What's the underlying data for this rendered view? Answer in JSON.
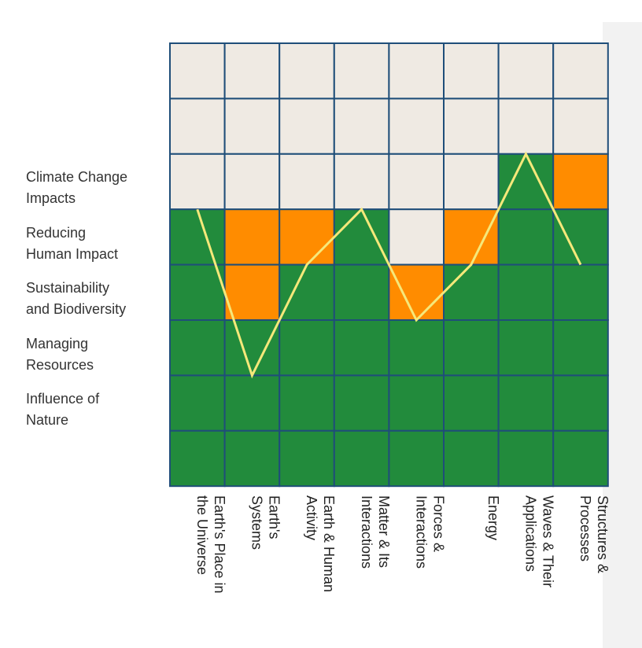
{
  "chart_data": {
    "type": "heatmap",
    "title": "",
    "row_labels": [
      "Climate Change Impacts",
      "Reducing Human Impact",
      "Sustainability and Biodiversity",
      "Managing Resources",
      "Influence of Nature"
    ],
    "row_label_lines": [
      [
        "Climate Change",
        "Impacts"
      ],
      [
        "Reducing",
        "Human Impact"
      ],
      [
        "Sustainability",
        "and Biodiversity"
      ],
      [
        "Managing",
        "Resources"
      ],
      [
        "Influence of",
        "Nature"
      ]
    ],
    "columns": [
      "Earth's Place in\nthe Universe",
      "Earth's\nSystems",
      "Earth & Human\nActivity",
      "Matter & Its\nInteractions",
      "Forces &\nInteractions",
      "Energy",
      "Waves & Their\nApplications",
      "Structures &\nProcesses"
    ],
    "grid_rows": 8,
    "green_height": [
      5,
      3,
      4,
      5,
      3,
      4,
      6,
      5
    ],
    "orange_above": [
      0,
      2,
      1,
      0,
      1,
      1,
      0,
      1
    ],
    "line_level": [
      5,
      2,
      4,
      5,
      3,
      4,
      6,
      4
    ],
    "colors": {
      "green": "#228b3c",
      "orange": "#ff8c00",
      "empty": "#efeae3",
      "border": "#1f4e79",
      "line": "#f5e87a"
    }
  }
}
